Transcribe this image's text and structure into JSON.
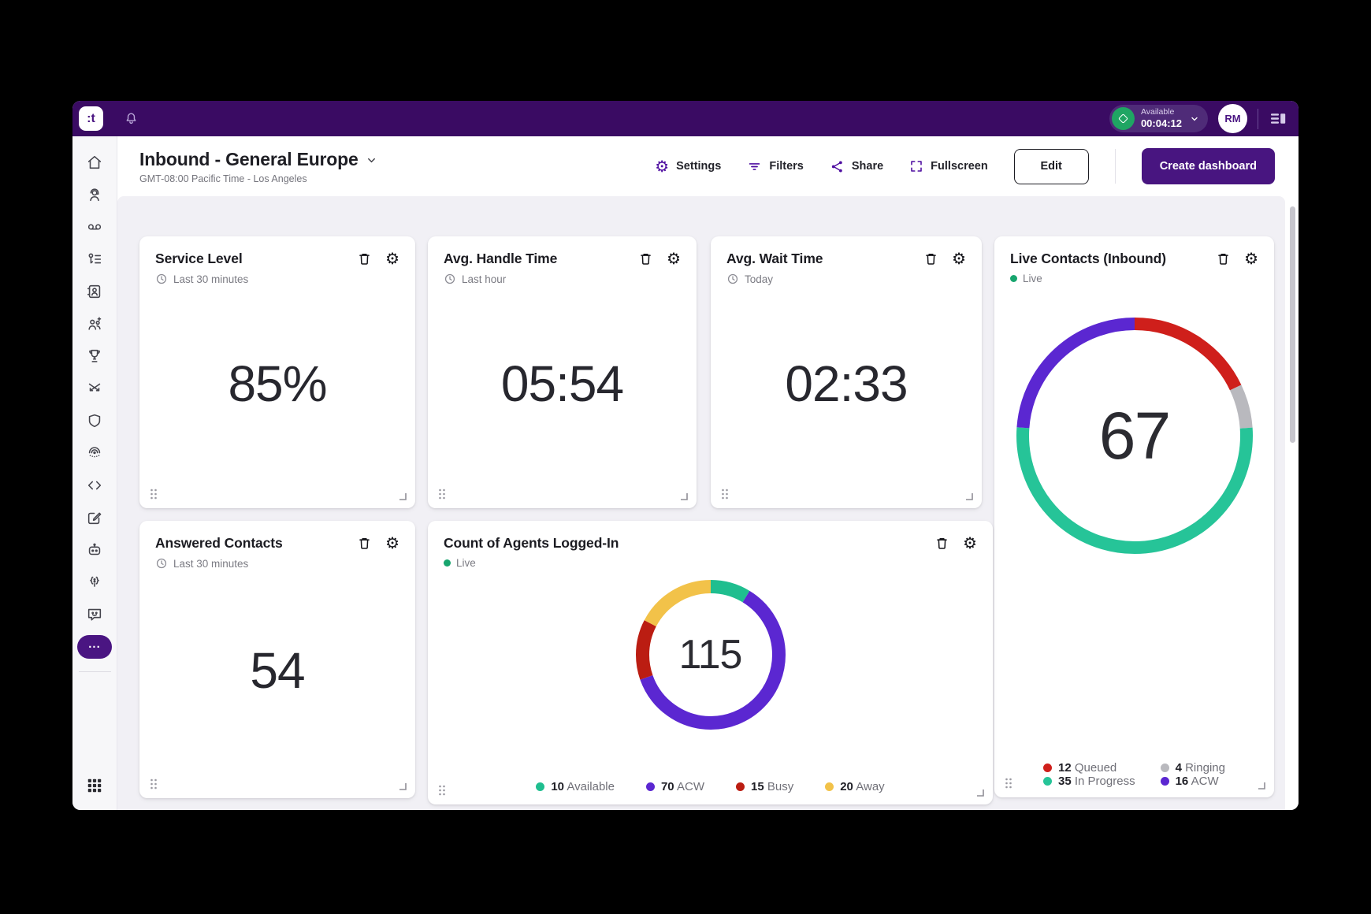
{
  "topbar": {
    "logo_text": ":t",
    "status": {
      "label": "Available",
      "timer": "00:04:12"
    },
    "avatar_initials": "RM"
  },
  "header": {
    "title": "Inbound - General Europe",
    "subtitle": "GMT-08:00 Pacific Time - Los Angeles",
    "toolbar": {
      "settings": "Settings",
      "filters": "Filters",
      "share": "Share",
      "fullscreen": "Fullscreen",
      "edit": "Edit",
      "create": "Create dashboard"
    }
  },
  "sidebar": {
    "items": [
      "home",
      "agent",
      "voicemail",
      "queues",
      "contacts",
      "teams",
      "gamification",
      "routing-flows",
      "security",
      "voice-biometrics",
      "developer",
      "compose",
      "virtual-agent",
      "ai-assistant",
      "feedback"
    ],
    "more_label": "...",
    "bottom_item": "apps-grid"
  },
  "cards": {
    "service_level": {
      "title": "Service Level",
      "timeframe": "Last 30 minutes",
      "value": "85%"
    },
    "avg_handle_time": {
      "title": "Avg. Handle Time",
      "timeframe": "Last hour",
      "value": "05:54"
    },
    "avg_wait_time": {
      "title": "Avg. Wait Time",
      "timeframe": "Today",
      "value": "02:33"
    },
    "answered_contacts": {
      "title": "Answered Contacts",
      "timeframe": "Last 30 minutes",
      "value": "54"
    },
    "live_contacts": {
      "title": "Live Contacts (Inbound)",
      "badge": "Live"
    },
    "agents_logged_in": {
      "title": "Count of Agents Logged-In",
      "badge": "Live"
    }
  },
  "chart_data": [
    {
      "type": "donut",
      "title": "Live Contacts (Inbound)",
      "total": 67,
      "legend_position": "bottom",
      "segments": [
        {
          "label": "Queued",
          "value": 12,
          "color": "#cf1f1b"
        },
        {
          "label": "Ringing",
          "value": 4,
          "color": "#b9b9be"
        },
        {
          "label": "In Progress",
          "value": 35,
          "color": "#26c498"
        },
        {
          "label": "ACW",
          "value": 16,
          "color": "#5b27d1"
        }
      ]
    },
    {
      "type": "donut",
      "title": "Count of Agents Logged-In",
      "total": 115,
      "legend_position": "bottom",
      "segments": [
        {
          "label": "Available",
          "value": 10,
          "color": "#1fbe8f"
        },
        {
          "label": "ACW",
          "value": 70,
          "color": "#5b27d1"
        },
        {
          "label": "Busy",
          "value": 15,
          "color": "#bb1d12"
        },
        {
          "label": "Away",
          "value": 20,
          "color": "#f2c249"
        }
      ]
    }
  ],
  "colors": {
    "topbar_purple": "#3a0b63",
    "accent_purple": "#4a1582",
    "toolbar_icon_purple": "#4e0da0",
    "status_green": "#1fa563",
    "live_dot_green": "#17a56e",
    "board_background": "#f1f0f5"
  },
  "icons": {
    "card_actions": [
      "trash-icon",
      "gear-icon"
    ],
    "timeframe": "clock-icon",
    "topbar": [
      "bell-icon",
      "status-diamond-icon",
      "chevron-down-icon",
      "panel-list-icon"
    ],
    "toolbar": [
      "gear-icon",
      "filter-icon",
      "share-icon",
      "fullscreen-icon"
    ],
    "card_chrome": [
      "drag-handle-icon",
      "resize-corner-icon"
    ]
  }
}
